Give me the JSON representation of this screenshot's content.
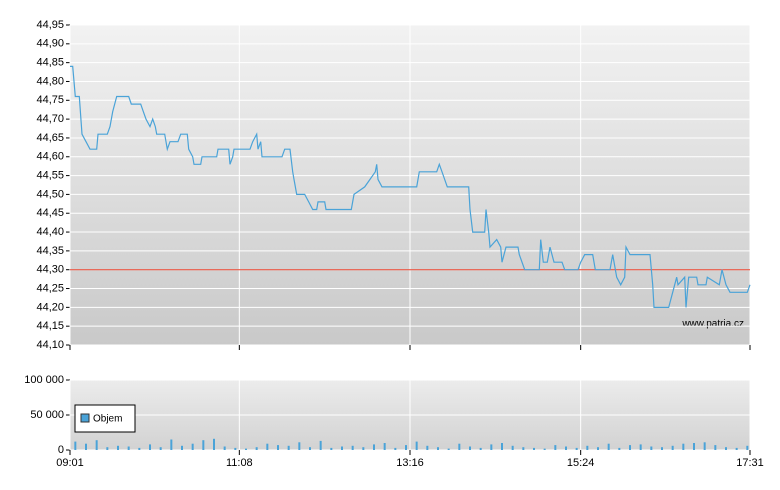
{
  "chart_data": [
    {
      "type": "line",
      "color": "#4aa3d8",
      "watermark": "www.patria.cz",
      "hline": 44.3,
      "hline_color": "#e8402a",
      "grid": true,
      "xlim": [
        541,
        1051
      ],
      "xticks": [
        541,
        668,
        796,
        924,
        1051
      ],
      "ylim": [
        44.1,
        44.95
      ],
      "yticks": [
        {
          "value": 44.1,
          "label": "44,10"
        },
        {
          "value": 44.15,
          "label": "44,15"
        },
        {
          "value": 44.2,
          "label": "44,20"
        },
        {
          "value": 44.25,
          "label": "44,25"
        },
        {
          "value": 44.3,
          "label": "44,30"
        },
        {
          "value": 44.35,
          "label": "44,35"
        },
        {
          "value": 44.4,
          "label": "44,40"
        },
        {
          "value": 44.45,
          "label": "44,45"
        },
        {
          "value": 44.5,
          "label": "44,50"
        },
        {
          "value": 44.55,
          "label": "44,55"
        },
        {
          "value": 44.6,
          "label": "44,60"
        },
        {
          "value": 44.65,
          "label": "44,65"
        },
        {
          "value": 44.7,
          "label": "44,70"
        },
        {
          "value": 44.75,
          "label": "44,75"
        },
        {
          "value": 44.8,
          "label": "44,80"
        },
        {
          "value": 44.85,
          "label": "44,85"
        },
        {
          "value": 44.9,
          "label": "44,90"
        },
        {
          "value": 44.95,
          "label": "44,95"
        }
      ],
      "x": [
        541,
        543,
        545,
        548,
        550,
        556,
        561,
        562,
        569,
        571,
        573,
        576,
        585,
        587,
        594,
        596,
        598,
        601,
        603,
        605,
        606,
        612,
        614,
        616,
        622,
        624,
        629,
        630,
        633,
        634,
        639,
        640,
        651,
        652,
        660,
        661,
        663,
        664,
        676,
        678,
        681,
        682,
        684,
        685,
        700,
        702,
        706,
        708,
        709,
        711,
        717,
        720,
        723,
        726,
        727,
        732,
        733,
        752,
        754,
        762,
        766,
        770,
        771,
        772,
        775,
        801,
        803,
        816,
        818,
        820,
        824,
        840,
        841,
        843,
        852,
        853,
        855,
        856,
        861,
        864,
        865,
        868,
        877,
        878,
        882,
        893,
        894,
        896,
        899,
        901,
        904,
        910,
        912,
        922,
        924,
        927,
        933,
        935,
        946,
        948,
        951,
        954,
        957,
        958,
        961,
        976,
        978,
        979,
        990,
        993,
        996,
        997,
        1002,
        1003,
        1005,
        1011,
        1012,
        1018,
        1019,
        1028,
        1030,
        1033,
        1036,
        1049,
        1051
      ],
      "values": [
        44.84,
        44.84,
        44.76,
        44.76,
        44.66,
        44.62,
        44.62,
        44.66,
        44.66,
        44.68,
        44.72,
        44.76,
        44.76,
        44.74,
        44.74,
        44.72,
        44.7,
        44.68,
        44.7,
        44.68,
        44.66,
        44.66,
        44.62,
        44.64,
        44.64,
        44.66,
        44.66,
        44.62,
        44.6,
        44.58,
        44.58,
        44.6,
        44.6,
        44.62,
        44.62,
        44.58,
        44.6,
        44.62,
        44.62,
        44.64,
        44.66,
        44.62,
        44.64,
        44.6,
        44.6,
        44.62,
        44.62,
        44.56,
        44.54,
        44.5,
        44.5,
        44.48,
        44.46,
        44.46,
        44.48,
        44.48,
        44.46,
        44.46,
        44.5,
        44.52,
        44.54,
        44.56,
        44.58,
        44.54,
        44.52,
        44.52,
        44.56,
        44.56,
        44.58,
        44.56,
        44.52,
        44.52,
        44.46,
        44.4,
        44.4,
        44.46,
        44.4,
        44.36,
        44.38,
        44.36,
        44.32,
        44.36,
        44.36,
        44.34,
        44.3,
        44.3,
        44.38,
        44.32,
        44.32,
        44.36,
        44.32,
        44.32,
        44.3,
        44.3,
        44.32,
        44.34,
        44.34,
        44.3,
        44.3,
        44.34,
        44.28,
        44.26,
        44.28,
        44.36,
        44.34,
        44.34,
        44.26,
        44.2,
        44.2,
        44.24,
        44.28,
        44.26,
        44.28,
        44.2,
        44.28,
        44.28,
        44.26,
        44.26,
        44.28,
        44.26,
        44.3,
        44.26,
        44.24,
        44.24,
        44.26
      ]
    },
    {
      "type": "bar",
      "grid": true,
      "legend": "upper-left",
      "xlim": [
        541,
        1051
      ],
      "xticks": [
        {
          "value": 541,
          "label": "09:01"
        },
        {
          "value": 668,
          "label": "11:08"
        },
        {
          "value": 796,
          "label": "13:16"
        },
        {
          "value": 924,
          "label": "15:24"
        },
        {
          "value": 1051,
          "label": "17:31"
        }
      ],
      "ylim": [
        0,
        100000
      ],
      "yticks": [
        0,
        {
          "value": 50000,
          "label": "50 000"
        },
        {
          "value": 100000,
          "label": "100 000"
        }
      ],
      "x": [
        545,
        553,
        561,
        569,
        577,
        585,
        593,
        601,
        609,
        617,
        625,
        633,
        641,
        649,
        657,
        665,
        673,
        681,
        689,
        697,
        705,
        713,
        721,
        729,
        737,
        745,
        753,
        761,
        769,
        777,
        785,
        793,
        801,
        809,
        817,
        825,
        833,
        841,
        849,
        857,
        865,
        873,
        881,
        889,
        897,
        905,
        913,
        921,
        929,
        937,
        945,
        953,
        961,
        969,
        977,
        985,
        993,
        1001,
        1009,
        1017,
        1025,
        1033,
        1041,
        1049
      ],
      "series": [
        {
          "name": "Objem",
          "color": "#4aa3d8",
          "values": [
            12000,
            9000,
            14000,
            4000,
            6000,
            5000,
            3000,
            8000,
            4000,
            15000,
            6000,
            9000,
            14000,
            16000,
            5000,
            3000,
            2000,
            4000,
            9000,
            7000,
            6000,
            11000,
            4000,
            13000,
            3000,
            5000,
            6000,
            4000,
            8000,
            10000,
            3000,
            7000,
            12000,
            6000,
            4000,
            2000,
            9000,
            5000,
            3000,
            8000,
            10000,
            6000,
            4000,
            3000,
            2000,
            7000,
            5000,
            3000,
            6000,
            4000,
            9000,
            3000,
            7000,
            8000,
            5000,
            4000,
            6000,
            9000,
            10000,
            11000,
            7000,
            4000,
            3000,
            6000
          ]
        }
      ]
    }
  ]
}
